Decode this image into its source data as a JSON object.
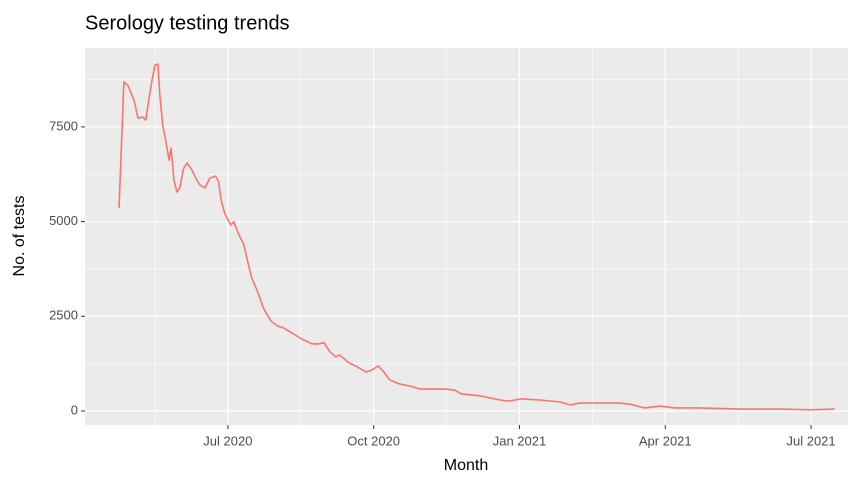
{
  "chart_data": {
    "type": "line",
    "title": "Serology testing trends",
    "x_label": "Month",
    "y_label": "No. of tests",
    "x": [
      4.76,
      4.86,
      4.94,
      5.07,
      5.15,
      5.25,
      5.31,
      5.37,
      5.44,
      5.5,
      5.56,
      5.6,
      5.66,
      5.72,
      5.79,
      5.83,
      5.89,
      5.95,
      6.01,
      6.09,
      6.16,
      6.26,
      6.34,
      6.42,
      6.53,
      6.63,
      6.75,
      6.81,
      6.86,
      6.94,
      7.06,
      7.12,
      7.21,
      7.33,
      7.41,
      7.49,
      7.58,
      7.66,
      7.72,
      7.82,
      7.91,
      8.03,
      8.15,
      8.28,
      8.48,
      8.73,
      8.85,
      8.98,
      9.1,
      9.22,
      9.3,
      9.47,
      9.67,
      9.84,
      9.96,
      10.09,
      10.21,
      10.33,
      10.54,
      10.74,
      10.95,
      11.16,
      11.47,
      11.67,
      11.81,
      12.19,
      12.6,
      12.8,
      13.01,
      13.42,
      13.83,
      14.04,
      14.24,
      14.65,
      15.07,
      15.27,
      15.58,
      15.89,
      16.2,
      16.71,
      17.53,
      18.36,
      18.98,
      19.49
    ],
    "series": [
      {
        "color": "#f8766d",
        "values": [
          5360,
          8690,
          8600,
          8200,
          7730,
          7760,
          7680,
          8200,
          8740,
          9130,
          9160,
          8340,
          7550,
          7150,
          6620,
          6940,
          6100,
          5780,
          5890,
          6410,
          6550,
          6360,
          6150,
          5970,
          5890,
          6150,
          6200,
          6050,
          5570,
          5200,
          4910,
          5000,
          4700,
          4380,
          3930,
          3510,
          3250,
          2980,
          2750,
          2510,
          2350,
          2240,
          2190,
          2090,
          1930,
          1770,
          1770,
          1800,
          1560,
          1430,
          1480,
          1290,
          1160,
          1030,
          1080,
          1190,
          1030,
          820,
          710,
          660,
          580,
          580,
          580,
          550,
          450,
          400,
          290,
          260,
          320,
          290,
          240,
          160,
          210,
          210,
          210,
          180,
          80,
          130,
          80,
          80,
          50,
          50,
          30,
          50
        ]
      }
    ],
    "xlim": [
      4.06,
      19.76
    ],
    "xticks": [
      {
        "value": 7,
        "label": "Jul 2020"
      },
      {
        "value": 10,
        "label": "Oct 2020"
      },
      {
        "value": 13,
        "label": "Jan 2021"
      },
      {
        "value": 16,
        "label": "Apr 2021"
      },
      {
        "value": 19,
        "label": "Jul 2021"
      }
    ],
    "ylim": [
      -370,
      9583
    ],
    "yticks": [
      0,
      2500,
      5000,
      7500
    ],
    "grid": true
  }
}
